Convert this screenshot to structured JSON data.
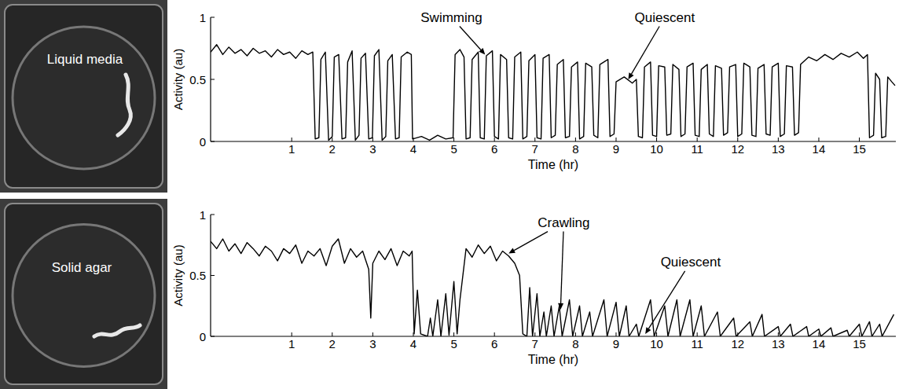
{
  "photos": [
    {
      "label": "Liquid media"
    },
    {
      "label": "Solid agar"
    }
  ],
  "chart_data": [
    {
      "type": "line",
      "xlabel": "Time (hr)",
      "ylabel": "Activity (au)",
      "color": "#000000",
      "xlim": [
        -1,
        15.9
      ],
      "xticks": [
        1,
        2,
        3,
        4,
        5,
        6,
        7,
        8,
        9,
        10,
        11,
        12,
        13,
        14,
        15
      ],
      "ylim": [
        0,
        1
      ],
      "yticks": [
        0,
        0.5,
        1
      ],
      "annotations": [
        {
          "text": "Swimming",
          "xytext": [
            4.94,
            1.0
          ],
          "xy": [
            [
              5.77,
              0.7
            ]
          ]
        },
        {
          "text": "Quiescent",
          "xytext": [
            10.2,
            1.0
          ],
          "xy": [
            [
              9.3,
              0.5
            ]
          ]
        }
      ],
      "x": [
        -1,
        -0.85,
        -0.7,
        -0.55,
        -0.4,
        -0.25,
        -0.1,
        0.05,
        0.2,
        0.35,
        0.5,
        0.65,
        0.8,
        0.95,
        1.1,
        1.25,
        1.4,
        1.52,
        1.58,
        1.67,
        1.72,
        1.83,
        1.91,
        2,
        2.05,
        2.16,
        2.24,
        2.33,
        2.38,
        2.49,
        2.57,
        2.66,
        2.71,
        2.82,
        2.9,
        2.99,
        3.04,
        3.15,
        3.23,
        3.32,
        3.37,
        3.48,
        3.56,
        3.65,
        3.7,
        3.85,
        3.95,
        3.98,
        4.2,
        4.4,
        4.6,
        4.8,
        4.98,
        5.03,
        5.15,
        5.25,
        5.3,
        5.4,
        5.45,
        5.6,
        5.65,
        5.75,
        5.8,
        5.95,
        6,
        6.1,
        6.15,
        6.3,
        6.35,
        6.45,
        6.5,
        6.65,
        6.7,
        6.8,
        6.85,
        7,
        7.05,
        7.15,
        7.2,
        7.35,
        7.4,
        7.5,
        7.55,
        7.7,
        7.75,
        7.85,
        7.9,
        8.05,
        8.1,
        8.2,
        8.25,
        8.4,
        8.45,
        8.55,
        8.6,
        8.8,
        8.85,
        8.95,
        9,
        9.2,
        9.4,
        9.5,
        9.55,
        9.65,
        9.7,
        9.85,
        9.9,
        10,
        10.05,
        10.2,
        10.25,
        10.35,
        10.4,
        10.55,
        10.6,
        10.7,
        10.75,
        10.9,
        10.95,
        11.05,
        11.1,
        11.25,
        11.3,
        11.4,
        11.45,
        11.6,
        11.65,
        11.75,
        11.8,
        11.95,
        12,
        12.1,
        12.15,
        12.3,
        12.35,
        12.45,
        12.5,
        12.65,
        12.7,
        12.8,
        12.85,
        13,
        13.05,
        13.15,
        13.2,
        13.35,
        13.4,
        13.5,
        13.55,
        13.75,
        13.95,
        14.15,
        14.35,
        14.55,
        14.75,
        14.95,
        15.1,
        15.2,
        15.25,
        15.35,
        15.4,
        15.5,
        15.55,
        15.65,
        15.7,
        15.8,
        15.88
      ],
      "values": [
        0.72,
        0.78,
        0.7,
        0.76,
        0.71,
        0.74,
        0.69,
        0.75,
        0.71,
        0.73,
        0.68,
        0.74,
        0.7,
        0.72,
        0.67,
        0.73,
        0.7,
        0.72,
        0.02,
        0.03,
        0.66,
        0.72,
        0.01,
        0.04,
        0.68,
        0.7,
        0.02,
        0.03,
        0.64,
        0.73,
        0.01,
        0.05,
        0.67,
        0.71,
        0.02,
        0.03,
        0.69,
        0.74,
        0.01,
        0.04,
        0.65,
        0.7,
        0.02,
        0.03,
        0.68,
        0.72,
        0.7,
        0.02,
        0.04,
        0.01,
        0.05,
        0.02,
        0.03,
        0.7,
        0.74,
        0.68,
        0.02,
        0.03,
        0.66,
        0.72,
        0.03,
        0.02,
        0.69,
        0.73,
        0.04,
        0.02,
        0.7,
        0.66,
        0.03,
        0.02,
        0.68,
        0.72,
        0.02,
        0.04,
        0.65,
        0.7,
        0.03,
        0.02,
        0.67,
        0.7,
        0.03,
        0.05,
        0.62,
        0.66,
        0.03,
        0.04,
        0.6,
        0.64,
        0.02,
        0.04,
        0.63,
        0.6,
        0.05,
        0.03,
        0.62,
        0.66,
        0.04,
        0.06,
        0.48,
        0.52,
        0.47,
        0.5,
        0.04,
        0.03,
        0.6,
        0.64,
        0.05,
        0.04,
        0.61,
        0.6,
        0.05,
        0.06,
        0.62,
        0.58,
        0.04,
        0.06,
        0.6,
        0.63,
        0.05,
        0.04,
        0.58,
        0.62,
        0.06,
        0.04,
        0.61,
        0.59,
        0.05,
        0.07,
        0.6,
        0.62,
        0.04,
        0.06,
        0.63,
        0.6,
        0.05,
        0.04,
        0.59,
        0.62,
        0.06,
        0.05,
        0.6,
        0.63,
        0.04,
        0.06,
        0.61,
        0.6,
        0.05,
        0.07,
        0.62,
        0.68,
        0.65,
        0.7,
        0.66,
        0.71,
        0.68,
        0.72,
        0.67,
        0.7,
        0.03,
        0.05,
        0.55,
        0.5,
        0.03,
        0.04,
        0.52,
        0.48,
        0.45
      ]
    },
    {
      "type": "line",
      "xlabel": "Time (hr)",
      "ylabel": "Activity (au)",
      "color": "#000000",
      "xlim": [
        -1,
        15.9
      ],
      "xticks": [
        1,
        2,
        3,
        4,
        5,
        6,
        7,
        8,
        9,
        10,
        11,
        12,
        13,
        14,
        15
      ],
      "ylim": [
        0,
        1
      ],
      "yticks": [
        0,
        0.5,
        1
      ],
      "annotations": [
        {
          "text": "Crawling",
          "xytext": [
            7.71,
            0.935
          ],
          "xy": [
            [
              6.35,
              0.68
            ],
            [
              7.63,
              0.22
            ]
          ]
        },
        {
          "text": "Quiescent",
          "xytext": [
            10.84,
            0.61
          ],
          "xy": [
            [
              9.72,
              0.02
            ]
          ]
        }
      ],
      "x": [
        -1,
        -0.85,
        -0.7,
        -0.55,
        -0.4,
        -0.25,
        -0.1,
        0.05,
        0.2,
        0.35,
        0.5,
        0.65,
        0.8,
        0.95,
        1.1,
        1.25,
        1.4,
        1.55,
        1.7,
        1.85,
        2,
        2.15,
        2.3,
        2.45,
        2.6,
        2.75,
        2.9,
        2.95,
        3,
        3.15,
        3.3,
        3.45,
        3.6,
        3.75,
        3.9,
        3.97,
        4.02,
        4.1,
        4.18,
        4.35,
        4.42,
        4.48,
        4.6,
        4.68,
        4.8,
        4.88,
        5,
        5.08,
        5.15,
        5.3,
        5.45,
        5.6,
        5.75,
        5.9,
        6.05,
        6.2,
        6.35,
        6.5,
        6.62,
        6.7,
        6.8,
        6.87,
        6.94,
        7.05,
        7.12,
        7.22,
        7.28,
        7.4,
        7.47,
        7.6,
        7.67,
        7.85,
        7.93,
        8.1,
        8.17,
        8.35,
        8.42,
        8.7,
        8.78,
        9,
        9.08,
        9.25,
        9.32,
        9.5,
        9.56,
        9.85,
        9.94,
        10.2,
        10.28,
        10.5,
        10.58,
        10.82,
        10.9,
        11.1,
        11.18,
        11.5,
        11.57,
        11.9,
        11.96,
        12.3,
        12.36,
        12.6,
        12.66,
        13,
        13.05,
        13.3,
        13.36,
        13.7,
        13.75,
        14,
        14.05,
        14.3,
        14.35,
        14.7,
        14.75,
        15,
        15.06,
        15.25,
        15.31,
        15.5,
        15.56,
        15.85
      ],
      "values": [
        0.78,
        0.72,
        0.8,
        0.7,
        0.76,
        0.68,
        0.77,
        0.72,
        0.66,
        0.74,
        0.7,
        0.62,
        0.72,
        0.68,
        0.75,
        0.6,
        0.7,
        0.66,
        0.72,
        0.58,
        0.74,
        0.8,
        0.6,
        0.72,
        0.65,
        0.7,
        0.55,
        0.15,
        0.6,
        0.7,
        0.63,
        0.72,
        0.58,
        0.7,
        0.66,
        0.7,
        0.02,
        0.38,
        0.02,
        0,
        0.15,
        0,
        0.3,
        0,
        0.35,
        0.01,
        0.45,
        0.02,
        0.3,
        0.72,
        0.65,
        0.75,
        0.68,
        0.74,
        0.62,
        0.7,
        0.66,
        0.6,
        0.5,
        0.02,
        0,
        0.4,
        0,
        0.35,
        0,
        0.2,
        0,
        0.25,
        0,
        0.25,
        0,
        0.3,
        0,
        0.25,
        0,
        0.2,
        0,
        0.3,
        0,
        0.28,
        0,
        0.25,
        0,
        0.1,
        0,
        0.3,
        0,
        0.25,
        0,
        0.3,
        0,
        0.3,
        0,
        0.25,
        0,
        0.2,
        0,
        0.15,
        0,
        0.12,
        0,
        0.18,
        0,
        0.08,
        0,
        0.1,
        0,
        0.08,
        0,
        0.06,
        0,
        0.07,
        0,
        0.05,
        0,
        0.1,
        0,
        0.12,
        0,
        0.1,
        0,
        0.18
      ]
    }
  ]
}
